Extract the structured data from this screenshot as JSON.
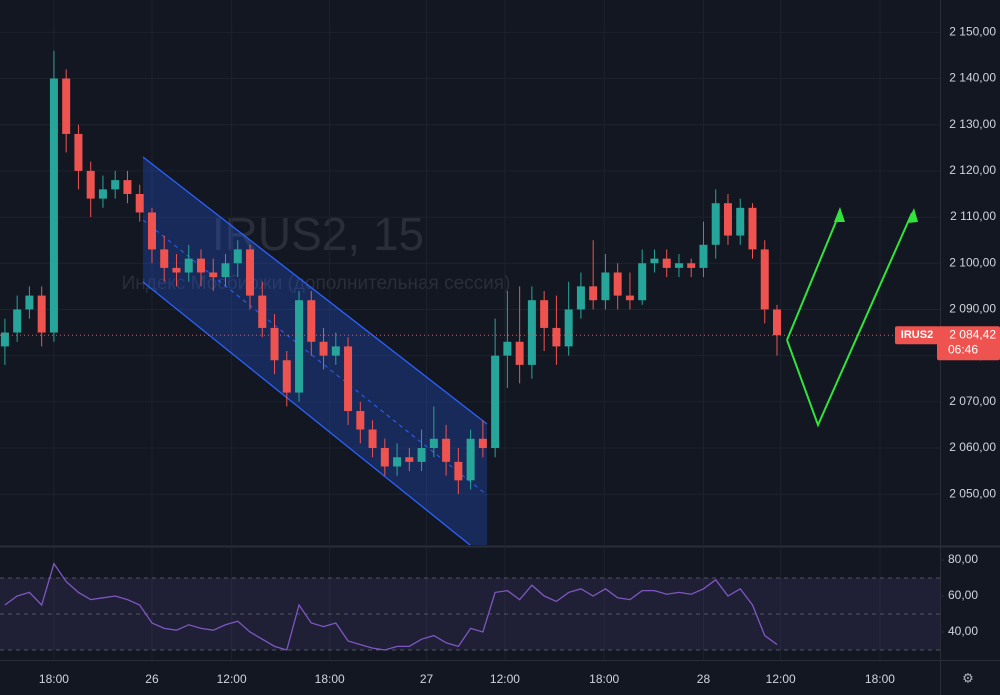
{
  "chart_data": [
    {
      "type": "candlestick",
      "title": "IRUS2, 15",
      "subtitle": "Индекс Мосбиржи (дополнительная сессия)",
      "up_color": "#26a69a",
      "down_color": "#ef5350",
      "open": [
        2082,
        2085,
        2090,
        2093,
        2085,
        2140,
        2128,
        2120,
        2114,
        2116,
        2118,
        2115,
        2111,
        2103,
        2099,
        2098,
        2101,
        2098,
        2097,
        2100,
        2103,
        2093,
        2086,
        2079,
        2072,
        2092,
        2083,
        2080,
        2082,
        2068,
        2064,
        2060,
        2056,
        2058,
        2057,
        2060,
        2062,
        2057,
        2053,
        2062,
        2060,
        2080,
        2083,
        2078,
        2092,
        2086,
        2082,
        2090,
        2095,
        2092,
        2098,
        2093,
        2092,
        2100,
        2101,
        2099,
        2100,
        2099,
        2104,
        2113,
        2106,
        2112,
        2103,
        2090
      ],
      "high": [
        2088,
        2093,
        2095,
        2095,
        2146,
        2142,
        2130,
        2122,
        2119,
        2120,
        2120,
        2117,
        2112,
        2106,
        2102,
        2104,
        2103,
        2101,
        2102,
        2105,
        2104,
        2096,
        2089,
        2081,
        2094,
        2094,
        2086,
        2085,
        2084,
        2070,
        2066,
        2062,
        2061,
        2060,
        2064,
        2069,
        2065,
        2060,
        2064,
        2066,
        2088,
        2094,
        2095,
        2095,
        2094,
        2093,
        2096,
        2098,
        2105,
        2102,
        2100,
        2098,
        2103,
        2103,
        2103,
        2102,
        2101,
        2109,
        2116,
        2115,
        2114,
        2113,
        2105,
        2091
      ],
      "low": [
        2078,
        2083,
        2088,
        2082,
        2083,
        2124,
        2116,
        2110,
        2112,
        2114,
        2113,
        2109,
        2100,
        2096,
        2095,
        2096,
        2095,
        2094,
        2095,
        2097,
        2090,
        2084,
        2076,
        2069,
        2070,
        2080,
        2077,
        2078,
        2065,
        2061,
        2058,
        2054,
        2054,
        2055,
        2055,
        2058,
        2054,
        2050,
        2051,
        2058,
        2058,
        2073,
        2074,
        2075,
        2081,
        2078,
        2080,
        2088,
        2090,
        2090,
        2090,
        2090,
        2091,
        2098,
        2097,
        2097,
        2097,
        2097,
        2101,
        2104,
        2104,
        2101,
        2087,
        2080
      ],
      "close": [
        2085,
        2090,
        2093,
        2085,
        2140,
        2128,
        2120,
        2114,
        2116,
        2118,
        2115,
        2111,
        2103,
        2099,
        2098,
        2101,
        2098,
        2097,
        2100,
        2103,
        2093,
        2086,
        2079,
        2072,
        2092,
        2083,
        2080,
        2082,
        2068,
        2064,
        2060,
        2056,
        2058,
        2057,
        2060,
        2062,
        2057,
        2053,
        2062,
        2060,
        2080,
        2083,
        2078,
        2092,
        2086,
        2082,
        2090,
        2095,
        2092,
        2098,
        2093,
        2092,
        2100,
        2101,
        2099,
        2100,
        2099,
        2104,
        2113,
        2106,
        2112,
        2103,
        2090,
        2084.42
      ],
      "xlim": [
        -0.4,
        76.3
      ],
      "xticks": [
        {
          "value": 4,
          "label": "18:00"
        },
        {
          "value": 12,
          "label": "26"
        },
        {
          "value": 18.5,
          "label": "12:00"
        },
        {
          "value": 26.5,
          "label": "18:00"
        },
        {
          "value": 34.4,
          "label": "27"
        },
        {
          "value": 40.8,
          "label": "12:00"
        },
        {
          "value": 48.9,
          "label": "18:00"
        },
        {
          "value": 57,
          "label": "28"
        },
        {
          "value": 63.3,
          "label": "12:00"
        },
        {
          "value": 71.4,
          "label": "18:00"
        }
      ],
      "ylim": [
        2039,
        2157
      ],
      "yticks": [
        {
          "value": 2050,
          "label": "2 050,00"
        },
        {
          "value": 2060,
          "label": "2 060,00"
        },
        {
          "value": 2070,
          "label": "2 070,00"
        },
        {
          "value": 2080,
          "label": "2 080,00"
        },
        {
          "value": 2090,
          "label": "2 090,00"
        },
        {
          "value": 2100,
          "label": "2 100,00"
        },
        {
          "value": 2110,
          "label": "2 110,00"
        },
        {
          "value": 2120,
          "label": "2 120,00"
        },
        {
          "value": 2130,
          "label": "2 130,00"
        },
        {
          "value": 2140,
          "label": "2 140,00"
        },
        {
          "value": 2150,
          "label": "2 150,00"
        }
      ],
      "grid": true,
      "symbol": "IRUS2",
      "last_price": {
        "value": 2084.42,
        "label": "2 084,42"
      },
      "countdown": "06:46"
    },
    {
      "type": "line",
      "color": "#7e57c2",
      "values": [
        55,
        60,
        62,
        55,
        78,
        68,
        62,
        58,
        59,
        60,
        58,
        55,
        45,
        42,
        41,
        44,
        42,
        41,
        44,
        46,
        40,
        36,
        32,
        30,
        55,
        45,
        43,
        45,
        35,
        33,
        31,
        30,
        32,
        32,
        36,
        38,
        34,
        32,
        42,
        40,
        62,
        63,
        58,
        66,
        60,
        57,
        62,
        64,
        60,
        64,
        59,
        58,
        63,
        63,
        61,
        62,
        61,
        64,
        69,
        60,
        64,
        55,
        38,
        33
      ],
      "ylim": [
        27.2,
        86.7
      ],
      "yticks": [
        {
          "value": 40,
          "label": "40,00"
        },
        {
          "value": 60,
          "label": "60,00"
        },
        {
          "value": 80,
          "label": "80,00"
        }
      ],
      "band": [
        30,
        70
      ],
      "midline": 50
    }
  ]
}
